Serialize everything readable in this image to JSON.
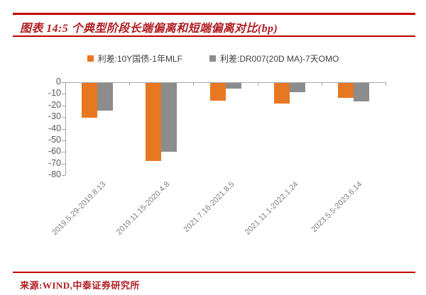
{
  "header": {
    "title": "图表 14:5 个典型阶段长端偏离和短端偏离对比(bp)"
  },
  "footer": {
    "source": "来源:WIND,中泰证券研究所"
  },
  "colors": {
    "rule_red": "#C00000",
    "title_red": "#B01E23",
    "series_orange": "#E87722",
    "series_gray": "#8C8C8C",
    "axis_gray": "#A6A6A6",
    "y_label_gray": "#595959",
    "x_label_gray": "#7F7F7F"
  },
  "chart_data": {
    "type": "bar",
    "title": "图表 14:5 个典型阶段长端偏离和短端偏离对比(bp)",
    "unit": "bp",
    "categories": [
      "2019.5.29-2019.8.13",
      "2019.11.15-2020.4.8",
      "2021.7.16-2021.8.5",
      "2021.11.1-2022.1.24",
      "2023.5.5-2023.6.14"
    ],
    "series": [
      {
        "name": "利差:10Y国债-1年MLF",
        "color": "#E87722",
        "values": [
          -30,
          -67,
          -15,
          -18,
          -13
        ]
      },
      {
        "name": "利差:DR007(20D MA)-7天OMO",
        "color": "#8C8C8C",
        "values": [
          -24,
          -59,
          -5,
          -8,
          -16
        ]
      }
    ],
    "ylim": [
      -80,
      0
    ],
    "yticks": [
      0,
      -10,
      -20,
      -30,
      -40,
      -50,
      -60,
      -70,
      -80
    ],
    "legend_position": "top-center",
    "grid": false,
    "bar_direction": "downward-from-zero"
  }
}
